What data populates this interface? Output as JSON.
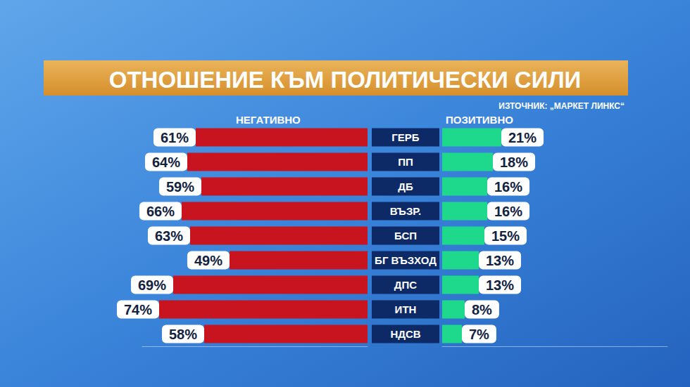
{
  "chart_data": {
    "type": "bar",
    "orientation": "horizontal",
    "title": "ОТНОШЕНИЕ КЪМ ПОЛИТИЧЕСКИ СИЛИ",
    "source": "ИЗТОЧНИК: „МАРКЕТ ЛИНКС“",
    "categories": [
      "ГЕРБ",
      "ПП",
      "ДБ",
      "ВЪЗР.",
      "БСП",
      "БГ ВЪЗХОД",
      "ДПС",
      "ИТН",
      "НДСВ"
    ],
    "series": [
      {
        "name": "НЕГАТИВНО",
        "color": "#c8141e",
        "values": [
          61,
          64,
          59,
          66,
          63,
          49,
          69,
          74,
          58
        ],
        "value_labels": [
          "61%",
          "64%",
          "59%",
          "66%",
          "63%",
          "49%",
          "69%",
          "74%",
          "58%"
        ]
      },
      {
        "name": "ПОЗИТИВНО",
        "color": "#1ed98c",
        "values": [
          21,
          18,
          16,
          16,
          15,
          13,
          13,
          8,
          7
        ],
        "value_labels": [
          "21%",
          "18%",
          "16%",
          "16%",
          "15%",
          "13%",
          "13%",
          "8%",
          "7%"
        ]
      }
    ],
    "xlim": [
      0,
      80
    ],
    "data_labels": true,
    "tick_labels": "y",
    "grid": false
  }
}
